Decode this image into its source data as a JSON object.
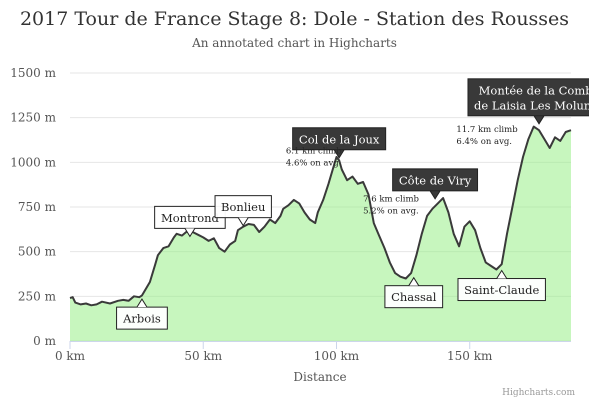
{
  "chart_data": {
    "type": "area",
    "title": "2017 Tour de France Stage 8: Dole - Station des Rousses",
    "subtitle": "An annotated chart in Highcharts",
    "xlabel": "Distance",
    "ylabel": "",
    "xlim": [
      0,
      188
    ],
    "ylim": [
      0,
      1500
    ],
    "x_ticks": [
      0,
      50,
      100,
      150
    ],
    "x_tick_labels": [
      "0 km",
      "50 km",
      "100 km",
      "150 km"
    ],
    "y_ticks": [
      0,
      250,
      500,
      750,
      1000,
      1250,
      1500
    ],
    "y_tick_labels": [
      "0 m",
      "250 m",
      "500 m",
      "750 m",
      "1000 m",
      "1250 m",
      "1500 m"
    ],
    "grid": "horizontal",
    "series": [
      {
        "color": "#90ee7e",
        "x": [
          0,
          1,
          2,
          4,
          6,
          8,
          10,
          12,
          15,
          18,
          20,
          22,
          24,
          26,
          27,
          28,
          30,
          32,
          33,
          35,
          37,
          39,
          40,
          42,
          44,
          46,
          48,
          50,
          52,
          54,
          56,
          58,
          60,
          62,
          63,
          65,
          67,
          69,
          71,
          73,
          75,
          77,
          79,
          80,
          82,
          84,
          86,
          88,
          90,
          92,
          93,
          95,
          97,
          99,
          100,
          101,
          102,
          104,
          106,
          108,
          110,
          112,
          114,
          116,
          118,
          120,
          122,
          124,
          126,
          128,
          130,
          132,
          134,
          136,
          138,
          140,
          142,
          144,
          146,
          148,
          150,
          152,
          154,
          156,
          158,
          160,
          162,
          164,
          166,
          168,
          170,
          172,
          174,
          176,
          178,
          180,
          182,
          184,
          186,
          188
        ],
        "values": [
          240,
          245,
          215,
          205,
          210,
          200,
          205,
          220,
          210,
          225,
          230,
          225,
          250,
          245,
          255,
          280,
          330,
          430,
          480,
          520,
          530,
          580,
          600,
          590,
          615,
          610,
          595,
          580,
          560,
          575,
          520,
          500,
          540,
          560,
          620,
          640,
          655,
          650,
          610,
          640,
          680,
          660,
          700,
          740,
          760,
          790,
          770,
          720,
          680,
          660,
          720,
          790,
          880,
          980,
          1030,
          1010,
          960,
          900,
          920,
          880,
          890,
          820,
          660,
          590,
          520,
          440,
          380,
          360,
          350,
          380,
          480,
          600,
          700,
          740,
          770,
          800,
          720,
          600,
          530,
          640,
          670,
          620,
          520,
          440,
          420,
          400,
          430,
          600,
          750,
          900,
          1030,
          1130,
          1200,
          1180,
          1130,
          1080,
          1140,
          1120,
          1170,
          1180
        ]
      }
    ],
    "annotations": [
      {
        "x": 27,
        "y": 240,
        "label": "Arbois"
      },
      {
        "x": 45,
        "y": 580,
        "label": "Montrond"
      },
      {
        "x": 65,
        "y": 640,
        "label": "Bonlieu"
      },
      {
        "x": 101,
        "y": 1020,
        "label": "Col de la Joux"
      },
      {
        "x": 137,
        "y": 790,
        "label": "Côte de Viry"
      },
      {
        "x": 129,
        "y": 360,
        "label": "Chassal"
      },
      {
        "x": 162,
        "y": 400,
        "label": "Saint-Claude"
      },
      {
        "x": 176,
        "y": 1210,
        "label": "Montée de la Combe\nde Laisia Les Molunes"
      }
    ],
    "climb_notes": [
      {
        "x": 81,
        "y": 1050,
        "label": "6.1 km climb\n4.6% on avg."
      },
      {
        "x": 110,
        "y": 780,
        "label": "7.6 km climb\n5.2% on avg."
      },
      {
        "x": 145,
        "y": 1170,
        "label": "11.7 km climb\n6.4% on avg."
      }
    ]
  },
  "credits": "Highcharts.com"
}
